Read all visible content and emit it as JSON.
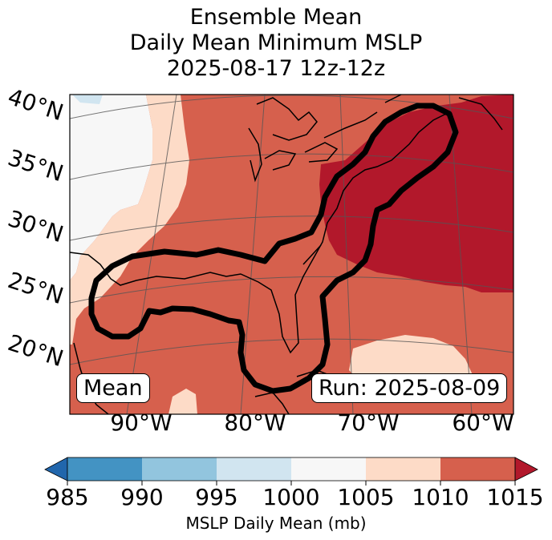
{
  "title": {
    "line1": "Ensemble Mean",
    "line2": "Daily Mean Minimum MSLP",
    "line3": "2025-08-17 12z-12z"
  },
  "map": {
    "lat_labels": [
      "40°N",
      "35°N",
      "30°N",
      "25°N",
      "20°N"
    ],
    "lon_labels": [
      "90°W",
      "80°W",
      "70°W",
      "60°W"
    ],
    "mean_label": "Mean",
    "run_label": "Run: 2025-08-09"
  },
  "colorbar": {
    "ticks": [
      "985",
      "990",
      "995",
      "1000",
      "1005",
      "1010",
      "1015"
    ],
    "label": "MSLP Daily Mean (mb)",
    "colors": {
      "below": "#2166ac",
      "985-990": "#4393c3",
      "990-995": "#92c5de",
      "995-1000": "#d1e5f0",
      "1000-1005": "#f7f7f7",
      "1005-1010": "#fddbc7",
      "1010-1015": "#d6604d",
      "above": "#b2182b"
    }
  }
}
